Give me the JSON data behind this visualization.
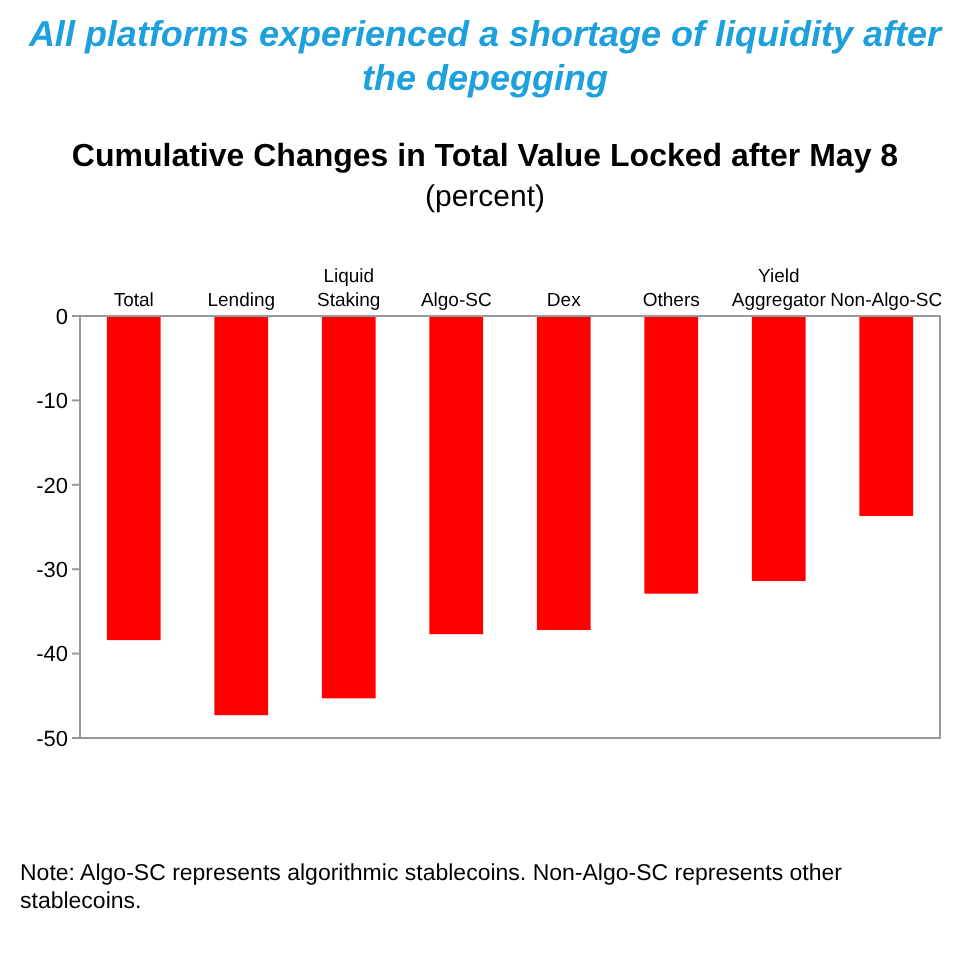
{
  "chart_data": {
    "type": "bar",
    "title": "Cumulative Changes in Total Value Locked after May 8",
    "subtitle": "(percent)",
    "annotations": [
      "All platforms experienced a shortage of liquidity after the depegging",
      "Note: Algo-SC represents algorithmic stablecoins. Non-Algo-SC represents other stablecoins."
    ],
    "categories": [
      "Total",
      "Lending",
      "Liquid Staking",
      "Algo-SC",
      "Dex",
      "Others",
      "Yield Aggregator",
      "Non-Algo-SC"
    ],
    "values": [
      -38.4,
      -47.3,
      -45.3,
      -37.7,
      -37.2,
      -32.9,
      -31.4,
      -23.7
    ],
    "color": "#ff0000",
    "ylim": [
      -50,
      0
    ],
    "yticks": [
      -50,
      -40,
      -30,
      -20,
      -10,
      0
    ],
    "grid": false
  }
}
